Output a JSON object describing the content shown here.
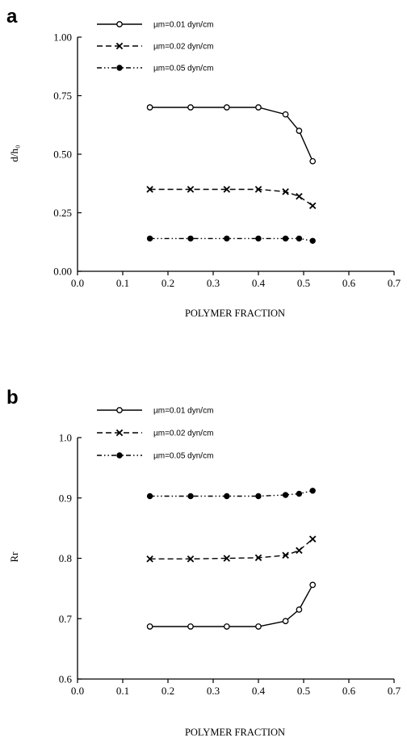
{
  "chart_data": [
    {
      "panel": "a",
      "type": "line",
      "xlabel": "POLYMER FRACTION",
      "ylabel": "d/h₀",
      "xlim": [
        0.0,
        0.7
      ],
      "ylim": [
        0.0,
        1.0
      ],
      "x_ticks": [
        "0.0",
        "0.1",
        "0.2",
        "0.3",
        "0.4",
        "0.5",
        "0.6",
        "0.7"
      ],
      "y_ticks": [
        "0.00",
        "0.25",
        "0.50",
        "0.75",
        "1.00"
      ],
      "legend_position": "top",
      "x": [
        0.16,
        0.25,
        0.33,
        0.4,
        0.46,
        0.49,
        0.52
      ],
      "series": [
        {
          "name": "µm=0.01 dyn/cm",
          "style": "solid",
          "marker": "open-circle",
          "values": [
            0.7,
            0.7,
            0.7,
            0.7,
            0.67,
            0.6,
            0.47
          ]
        },
        {
          "name": "µm=0.02 dyn/cm",
          "style": "dashed",
          "marker": "x",
          "values": [
            0.35,
            0.35,
            0.35,
            0.35,
            0.34,
            0.32,
            0.28
          ]
        },
        {
          "name": "µm=0.05 dyn/cm",
          "style": "dash-dot-dot",
          "marker": "filled-circle",
          "values": [
            0.14,
            0.14,
            0.14,
            0.14,
            0.14,
            0.14,
            0.13
          ]
        }
      ]
    },
    {
      "panel": "b",
      "type": "line",
      "xlabel": "POLYMER FRACTION",
      "ylabel": "Rr",
      "xlim": [
        0.0,
        0.7
      ],
      "ylim": [
        0.6,
        1.0
      ],
      "x_ticks": [
        "0.0",
        "0.1",
        "0.2",
        "0.3",
        "0.4",
        "0.5",
        "0.6",
        "0.7"
      ],
      "y_ticks": [
        "0.6",
        "0.7",
        "0.8",
        "0.9",
        "1.0"
      ],
      "legend_position": "top",
      "x": [
        0.16,
        0.25,
        0.33,
        0.4,
        0.46,
        0.49,
        0.52
      ],
      "series": [
        {
          "name": "µm=0.01 dyn/cm",
          "style": "solid",
          "marker": "open-circle",
          "values": [
            0.687,
            0.687,
            0.687,
            0.687,
            0.696,
            0.715,
            0.756
          ]
        },
        {
          "name": "µm=0.02 dyn/cm",
          "style": "dashed",
          "marker": "x",
          "values": [
            0.799,
            0.799,
            0.8,
            0.801,
            0.805,
            0.813,
            0.832
          ]
        },
        {
          "name": "µm=0.05 dyn/cm",
          "style": "dash-dot-dot",
          "marker": "filled-circle",
          "values": [
            0.903,
            0.903,
            0.903,
            0.903,
            0.905,
            0.907,
            0.912
          ]
        }
      ]
    }
  ]
}
